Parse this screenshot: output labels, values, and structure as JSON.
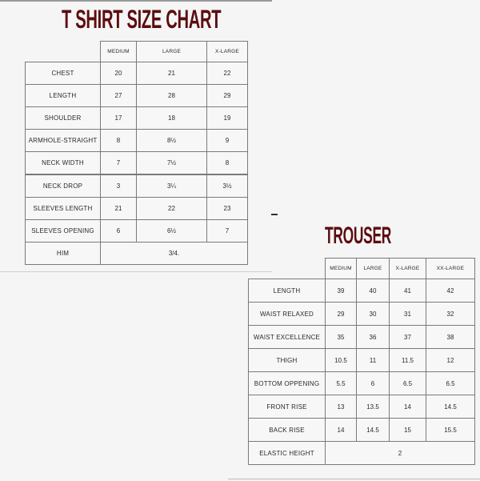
{
  "tshirt": {
    "title": "T SHIRT SIZE CHART",
    "columns": [
      "MEDIUM",
      "LARGE",
      "X-LARGE"
    ],
    "rows": [
      {
        "label": "CHEST",
        "values": [
          "20",
          "21",
          "22"
        ]
      },
      {
        "label": "LENGTH",
        "values": [
          "27",
          "28",
          "29"
        ]
      },
      {
        "label": "SHOULDER",
        "values": [
          "17",
          "18",
          "19"
        ]
      },
      {
        "label": "ARMHOLE-STRAIGHT",
        "values": [
          "8",
          "8½",
          "9"
        ]
      },
      {
        "label": "NECK WIDTH",
        "values": [
          "7",
          "7½",
          "8"
        ]
      },
      {
        "label": "NECK DROP",
        "values": [
          "3",
          "3¼",
          "3½"
        ]
      },
      {
        "label": "SLEEVES LENGTH",
        "values": [
          "21",
          "22",
          "23"
        ]
      },
      {
        "label": "SLEEVES OPENING",
        "values": [
          "6",
          "6½",
          "7"
        ]
      },
      {
        "label": "HIM",
        "merged": "3/4."
      }
    ]
  },
  "trouser": {
    "title": "TROUSER",
    "columns": [
      "MEDIUM",
      "LARGE",
      "X-LARGE",
      "XX-LARGE"
    ],
    "rows": [
      {
        "label": "LENGTH",
        "values": [
          "39",
          "40",
          "41",
          "42"
        ]
      },
      {
        "label": "WAIST RELAXED",
        "values": [
          "29",
          "30",
          "31",
          "32"
        ]
      },
      {
        "label": "WAIST EXCELLENCE",
        "values": [
          "35",
          "36",
          "37",
          "38"
        ]
      },
      {
        "label": "THIGH",
        "values": [
          "10.5",
          "11",
          "11.5",
          "12"
        ]
      },
      {
        "label": "BOTTOM OPPENING",
        "values": [
          "5.5",
          "6",
          "6.5",
          "6.5"
        ]
      },
      {
        "label": "FRONT RISE",
        "values": [
          "13",
          "13.5",
          "14",
          "14.5"
        ]
      },
      {
        "label": "BACK RISE",
        "values": [
          "14",
          "14.5",
          "15",
          "15.5"
        ]
      },
      {
        "label": "ELASTIC HEIGHT",
        "merged": "2"
      }
    ]
  },
  "colors": {
    "title": "#5c0d10",
    "border": "#7a7a7a"
  }
}
